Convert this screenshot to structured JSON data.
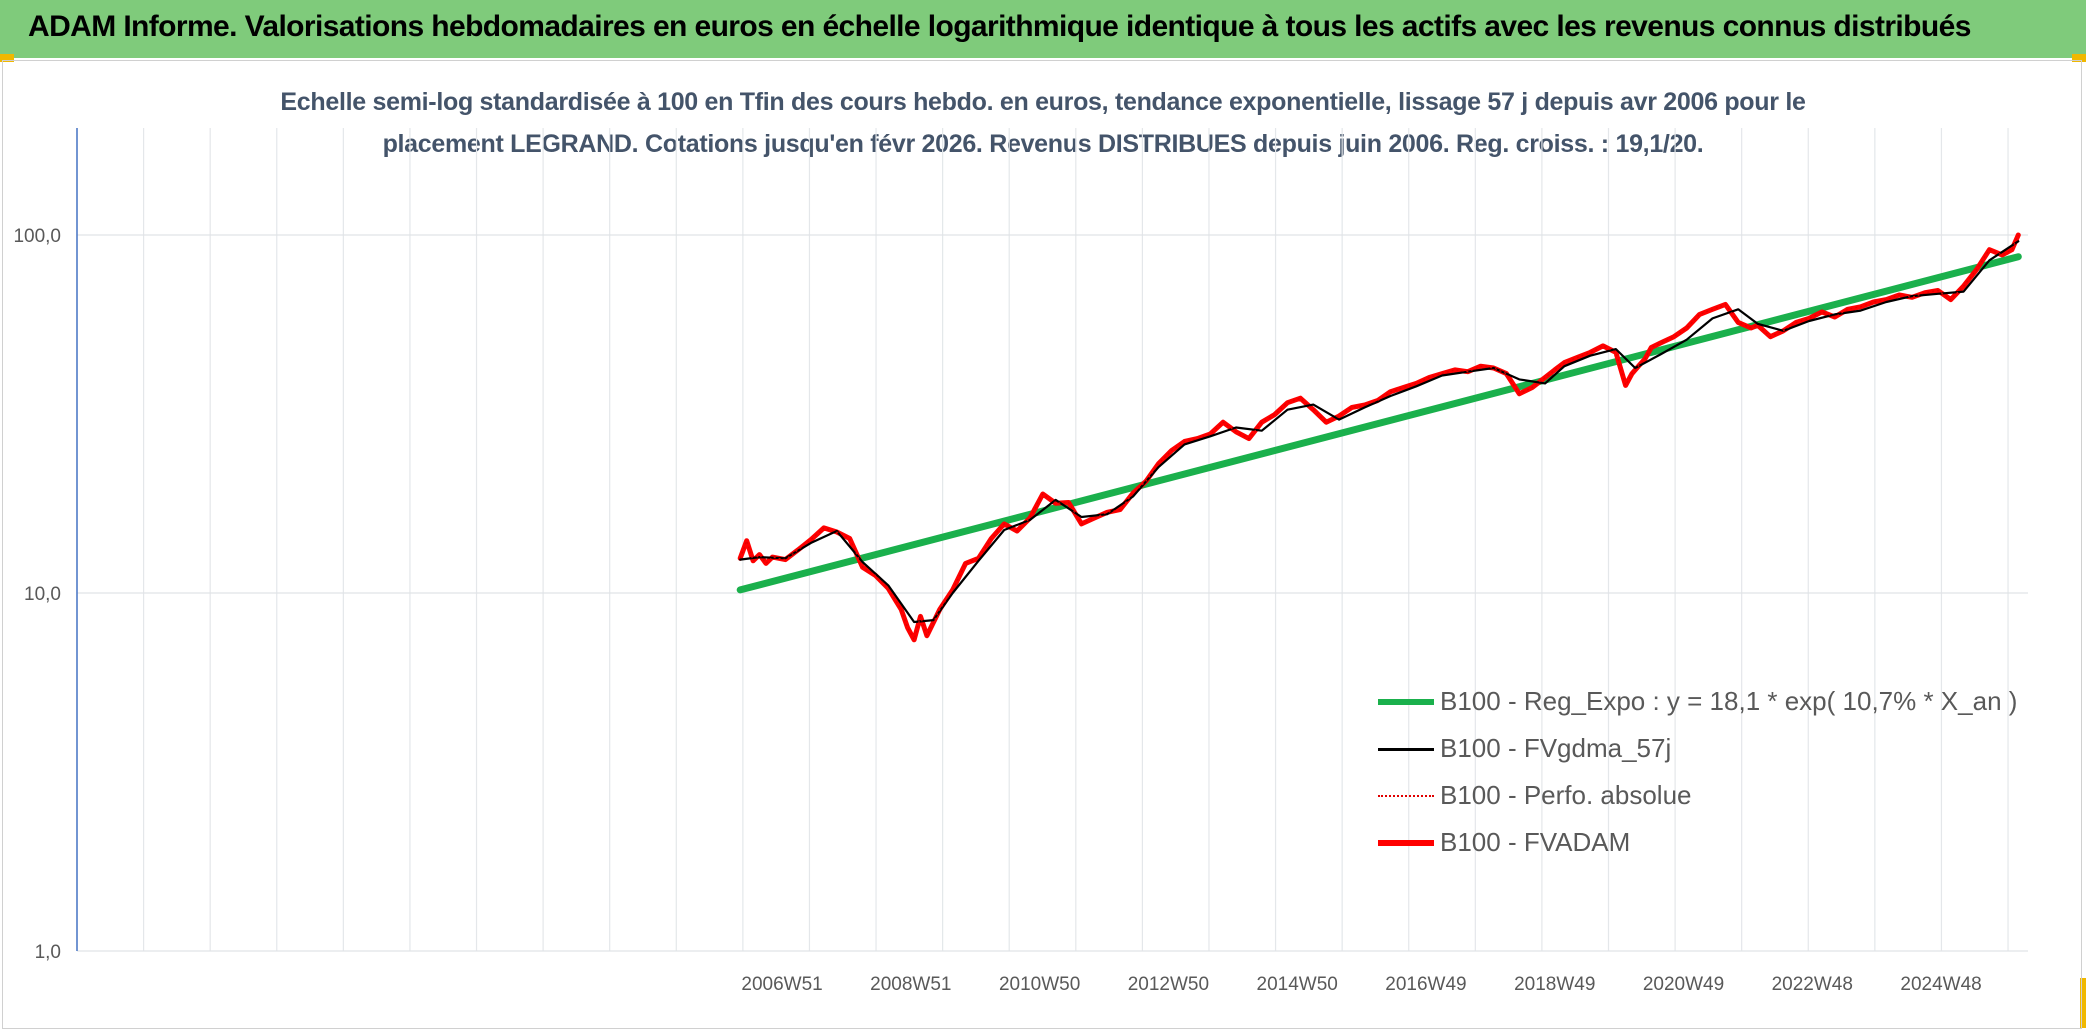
{
  "header": {
    "title": "ADAM Informe. Valorisations hebdomadaires en euros en échelle logarithmique identique à tous les actifs avec les revenus connus distribués"
  },
  "colors": {
    "banner": "#7fcb7b",
    "corner_accent": "#f0b800",
    "regression": "#1ab04c",
    "moving_average": "#000000",
    "perfo_absolue": "#e00000",
    "fvadam": "#ff0000",
    "axis_text": "#595959",
    "subtitle_text": "#44546a"
  },
  "chart_data": {
    "type": "line",
    "title_lines": [
      "Echelle semi-log standardisée à 100 en Tfin des cours hebdo. en euros, tendance exponentielle, lissage 57 j depuis avr 2006 pour le",
      "placement LEGRAND. Cotations jusqu'en févr 2026. Revenus DISTRIBUES depuis juin 2006. Reg. croiss. : 19,1/20."
    ],
    "y_scale": "log",
    "ylim": [
      1,
      100
    ],
    "y_ticks": [
      "1,0",
      "10,0",
      "100,0"
    ],
    "x_ticks": [
      "2006W51",
      "2008W51",
      "2010W50",
      "2012W50",
      "2014W50",
      "2016W49",
      "2018W49",
      "2020W49",
      "2022W48",
      "2024W48"
    ],
    "xlim_years": [
      1996.0,
      2026.3
    ],
    "grid": "vertical and horizontal gridlines",
    "legend_position": "lower-right",
    "legend": [
      {
        "label": "B100 - Reg_Expo : y = 18,1 * exp( 10,7% *  X_an )",
        "style": "thick-solid",
        "color_key": "regression"
      },
      {
        "label": "B100 - FVgdma_57j",
        "style": "thin-solid",
        "color_key": "moving_average"
      },
      {
        "label": "B100 - Perfo. absolue",
        "style": "dotted",
        "color_key": "perfo_absolue"
      },
      {
        "label": "B100 - FVADAM",
        "style": "thick-solid",
        "color_key": "fvadam"
      }
    ],
    "series": [
      {
        "name": "B100 - Reg_Expo : y = 18,1 * exp( 10,7% *  X_an )",
        "x": [
          2006.3,
          2026.15
        ],
        "y": [
          10.2,
          87
        ]
      },
      {
        "name": "B100 - FVADAM",
        "x": [
          2006.3,
          2006.4,
          2006.5,
          2006.6,
          2006.7,
          2006.8,
          2007.0,
          2007.2,
          2007.4,
          2007.6,
          2007.8,
          2008.0,
          2008.2,
          2008.4,
          2008.6,
          2008.8,
          2008.9,
          2009.0,
          2009.1,
          2009.2,
          2009.4,
          2009.6,
          2009.8,
          2010.0,
          2010.2,
          2010.4,
          2010.6,
          2010.8,
          2011.0,
          2011.2,
          2011.4,
          2011.6,
          2011.8,
          2012.0,
          2012.2,
          2012.4,
          2012.6,
          2012.8,
          2013.0,
          2013.2,
          2013.4,
          2013.6,
          2013.8,
          2014.0,
          2014.2,
          2014.4,
          2014.6,
          2014.8,
          2015.0,
          2015.2,
          2015.4,
          2015.6,
          2015.8,
          2016.0,
          2016.2,
          2016.4,
          2016.6,
          2016.8,
          2017.0,
          2017.2,
          2017.4,
          2017.6,
          2017.8,
          2018.0,
          2018.2,
          2018.4,
          2018.6,
          2018.8,
          2018.95,
          2019.1,
          2019.3,
          2019.5,
          2019.7,
          2019.9,
          2020.05,
          2020.15,
          2020.25,
          2020.35,
          2020.45,
          2020.6,
          2020.8,
          2021.0,
          2021.2,
          2021.4,
          2021.6,
          2021.8,
          2022.0,
          2022.1,
          2022.3,
          2022.5,
          2022.7,
          2022.9,
          2023.1,
          2023.3,
          2023.5,
          2023.7,
          2023.9,
          2024.1,
          2024.3,
          2024.5,
          2024.7,
          2024.9,
          2025.1,
          2025.3,
          2025.5,
          2025.7,
          2025.9,
          2026.05,
          2026.15
        ],
        "y": [
          12.5,
          14.0,
          12.3,
          12.8,
          12.1,
          12.6,
          12.4,
          13.2,
          14.1,
          15.2,
          14.8,
          14.2,
          11.8,
          11.2,
          10.3,
          9.0,
          8.0,
          7.4,
          8.6,
          7.6,
          9.0,
          10.2,
          12.1,
          12.5,
          14.2,
          15.6,
          14.9,
          16.2,
          18.9,
          17.8,
          17.9,
          15.6,
          16.2,
          16.8,
          17.1,
          19.0,
          20.5,
          23.0,
          25.0,
          26.5,
          27.0,
          27.8,
          30.0,
          28.2,
          27.0,
          30.0,
          31.5,
          34.0,
          35.0,
          32.5,
          30.0,
          31.2,
          33.0,
          33.5,
          34.5,
          36.5,
          37.5,
          38.5,
          40.0,
          41.0,
          42.0,
          41.5,
          43.0,
          42.5,
          41.0,
          36.0,
          37.5,
          40.0,
          42.0,
          44.0,
          45.5,
          47.0,
          49.0,
          47.0,
          38.0,
          41.0,
          43.0,
          45.0,
          48.5,
          50.0,
          52.0,
          55.0,
          60.0,
          62.0,
          64.0,
          57.0,
          55.0,
          56.0,
          52.0,
          54.0,
          57.0,
          58.5,
          61.0,
          59.0,
          62.0,
          63.0,
          65.0,
          66.0,
          68.0,
          67.0,
          69.0,
          70.0,
          66.0,
          72.0,
          80.0,
          91.0,
          88.0,
          91.0,
          100.0
        ]
      },
      {
        "name": "B100 - FVgdma_57j",
        "x": [
          2006.3,
          2006.6,
          2007.0,
          2007.4,
          2007.8,
          2008.2,
          2008.6,
          2009.0,
          2009.3,
          2009.6,
          2010.0,
          2010.4,
          2010.8,
          2011.2,
          2011.6,
          2012.0,
          2012.4,
          2012.8,
          2013.2,
          2013.6,
          2014.0,
          2014.4,
          2014.8,
          2015.2,
          2015.6,
          2016.0,
          2016.4,
          2016.8,
          2017.2,
          2017.6,
          2018.0,
          2018.4,
          2018.8,
          2019.1,
          2019.5,
          2019.9,
          2020.2,
          2020.6,
          2021.0,
          2021.4,
          2021.8,
          2022.1,
          2022.5,
          2022.9,
          2023.3,
          2023.7,
          2024.1,
          2024.5,
          2024.9,
          2025.3,
          2025.7,
          2026.15
        ],
        "y": [
          12.4,
          12.6,
          12.5,
          13.8,
          14.9,
          12.2,
          10.5,
          8.3,
          8.4,
          10.0,
          12.3,
          15.0,
          16.0,
          18.2,
          16.3,
          16.6,
          18.6,
          22.5,
          26.0,
          27.4,
          29.0,
          28.4,
          32.5,
          33.6,
          30.5,
          33.0,
          35.5,
          37.8,
          40.5,
          41.5,
          42.5,
          39.5,
          38.5,
          43.0,
          46.0,
          48.0,
          42.5,
          46.5,
          51.0,
          58.5,
          62.0,
          56.5,
          54.0,
          57.5,
          60.0,
          61.5,
          65.0,
          67.5,
          68.5,
          69.5,
          85.0,
          96.0
        ]
      }
    ]
  }
}
